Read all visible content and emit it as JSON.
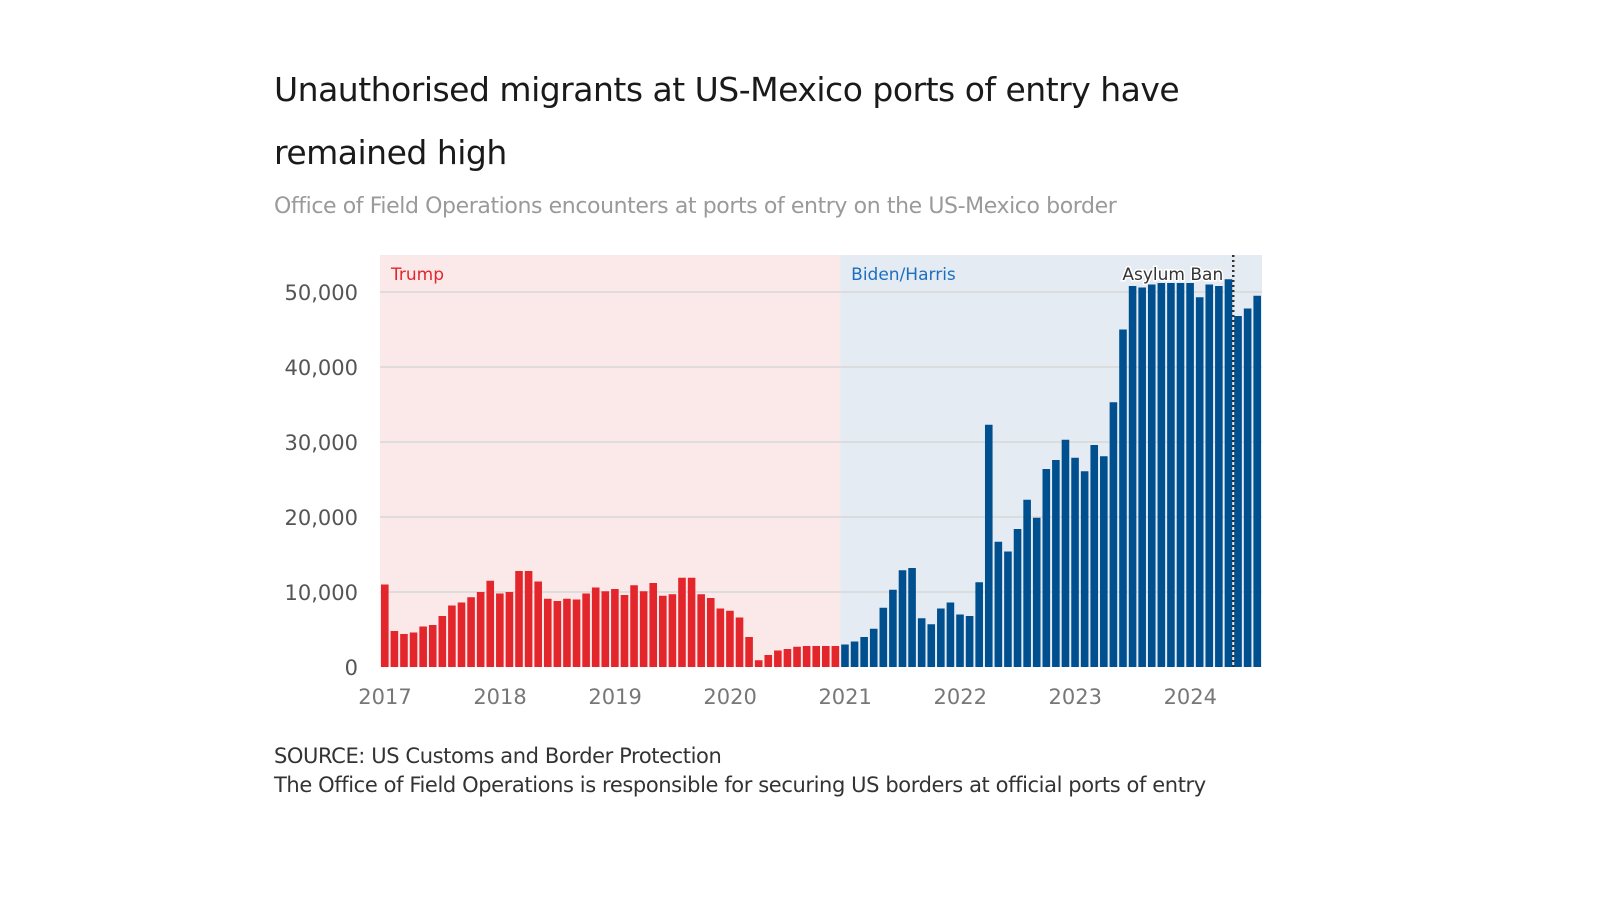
{
  "title": "Unauthorised migrants at US-Mexico ports of entry have remained high",
  "subtitle": "Office of Field Operations encounters at ports of entry on the US-Mexico border",
  "source": "SOURCE: US Customs and Border Protection",
  "note": "The Office of Field Operations is responsible for securing US borders at official ports of entry",
  "colors": {
    "trump": "#e3262b",
    "trump_bg": "#fbe8e8",
    "biden": "#00508f",
    "biden_bg": "#e4ebf3",
    "biden_label": "#1c6fc0"
  },
  "chart_data": {
    "type": "bar",
    "start": "2017-01",
    "frequency": "monthly",
    "ylim": [
      0,
      55000
    ],
    "yticks": [
      0,
      10000,
      20000,
      30000,
      40000,
      50000
    ],
    "ytick_labels": [
      "0",
      "10,000",
      "20,000",
      "30,000",
      "40,000",
      "50,000"
    ],
    "xtick_labels": [
      "2017",
      "2018",
      "2019",
      "2020",
      "2021",
      "2022",
      "2023",
      "2024"
    ],
    "grid": true,
    "series": [
      {
        "name": "Trump",
        "values": [
          11000,
          4800,
          4400,
          4600,
          5400,
          5600,
          6800,
          8200,
          8600,
          9300,
          10000,
          11500,
          9800,
          10000,
          12800,
          12800,
          11400,
          9100,
          8800,
          9100,
          9000,
          9800,
          10600,
          10100,
          10400,
          9600,
          10900,
          10100,
          11200,
          9500,
          9700,
          11900,
          11900,
          9700,
          9200,
          7800,
          7500,
          6600,
          4000,
          900,
          1600,
          2200,
          2400,
          2700,
          2800,
          2800,
          2800,
          2800
        ]
      },
      {
        "name": "Biden/Harris",
        "values": [
          3000,
          3400,
          4000,
          5100,
          7900,
          10300,
          12900,
          13200,
          6500,
          5700,
          7800,
          8600,
          7000,
          6800,
          11300,
          32300,
          16700,
          15400,
          18400,
          22300,
          19900,
          26400,
          27600,
          30300,
          27900,
          26100,
          29600,
          28100,
          35300,
          45000,
          50800,
          50600,
          51000,
          51200,
          51200,
          51200,
          51200,
          49300,
          51000,
          50800,
          51700,
          46800,
          47800,
          49500
        ]
      }
    ],
    "annotation": {
      "label": "Asylum Ban",
      "after_month": "2024-05"
    }
  }
}
